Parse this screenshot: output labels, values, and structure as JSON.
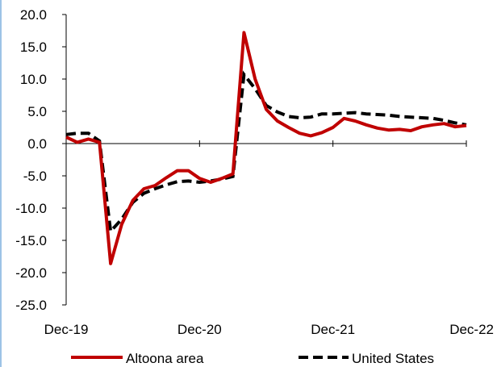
{
  "chart_data": {
    "type": "line",
    "title": "",
    "xlabel": "",
    "ylabel": "",
    "ylim": [
      -25,
      20
    ],
    "y_ticks": [
      20,
      15,
      10,
      5,
      0,
      -5,
      -10,
      -15,
      -20,
      -25
    ],
    "y_tick_labels": [
      "20.0",
      "15.0",
      "10.0",
      "5.0",
      "0.0",
      "-5.0",
      "-10.0",
      "-15.0",
      "-20.0",
      "-25.0"
    ],
    "x_tick_labels": [
      "Dec-19",
      "Dec-20",
      "Dec-21",
      "Dec-22"
    ],
    "x": [
      "Dec-19",
      "Jan-20",
      "Feb-20",
      "Mar-20",
      "Apr-20",
      "May-20",
      "Jun-20",
      "Jul-20",
      "Aug-20",
      "Sep-20",
      "Oct-20",
      "Nov-20",
      "Dec-20",
      "Jan-21",
      "Feb-21",
      "Mar-21",
      "Apr-21",
      "May-21",
      "Jun-21",
      "Jul-21",
      "Aug-21",
      "Sep-21",
      "Oct-21",
      "Nov-21",
      "Dec-21",
      "Jan-22",
      "Feb-22",
      "Mar-22",
      "Apr-22",
      "May-22",
      "Jun-22",
      "Jul-22",
      "Aug-22",
      "Sep-22",
      "Oct-22",
      "Nov-22",
      "Dec-22"
    ],
    "grid": false,
    "legend_position": "bottom",
    "series": [
      {
        "name": "Altoona area",
        "color": "#c00000",
        "dash": "solid",
        "values": [
          1.0,
          0.2,
          0.7,
          0.2,
          -18.6,
          -12.5,
          -8.8,
          -7.0,
          -6.5,
          -5.3,
          -4.2,
          -4.2,
          -5.4,
          -6.0,
          -5.4,
          -4.7,
          17.2,
          10.0,
          5.3,
          3.5,
          2.5,
          1.6,
          1.2,
          1.7,
          2.5,
          3.9,
          3.5,
          2.9,
          2.4,
          2.1,
          2.2,
          2.0,
          2.6,
          2.9,
          3.1,
          2.6,
          2.8
        ]
      },
      {
        "name": "United States",
        "color": "#000000",
        "dash": "dashed",
        "values": [
          1.4,
          1.6,
          1.6,
          0.4,
          -13.6,
          -11.7,
          -9.1,
          -7.7,
          -7.0,
          -6.4,
          -5.9,
          -5.8,
          -6.0,
          -5.8,
          -5.5,
          -5.1,
          10.7,
          8.5,
          5.9,
          4.9,
          4.2,
          4.0,
          4.1,
          4.6,
          4.6,
          4.7,
          4.8,
          4.6,
          4.5,
          4.4,
          4.2,
          4.1,
          4.0,
          3.9,
          3.6,
          3.2,
          2.9
        ]
      }
    ]
  }
}
